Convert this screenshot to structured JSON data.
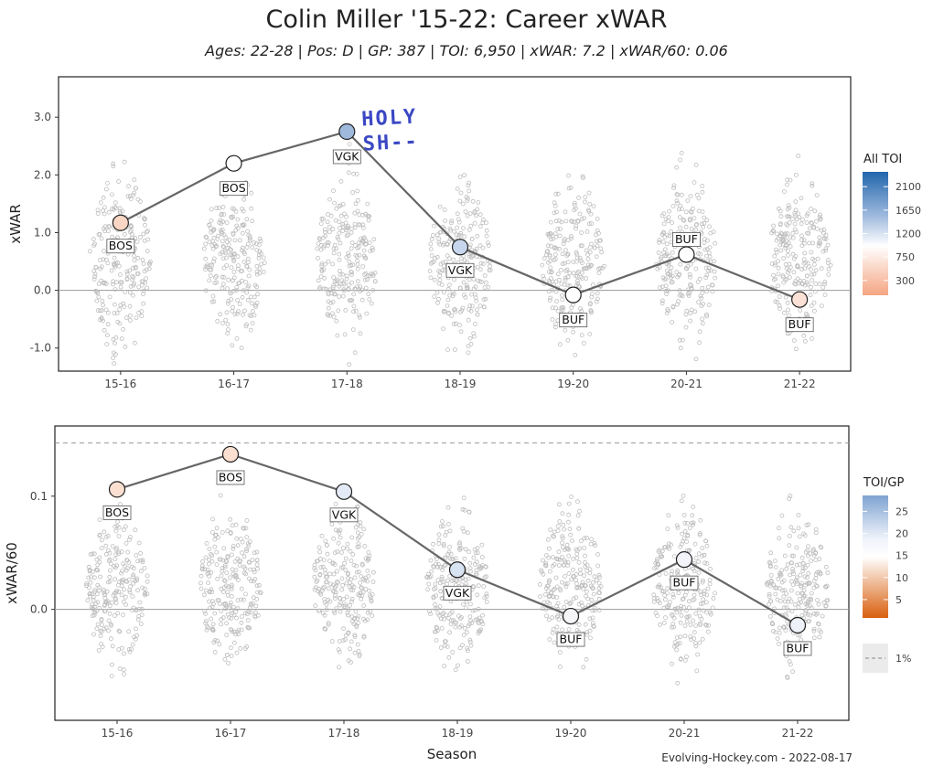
{
  "title": "Colin Miller '15-22: Career xWAR",
  "subtitle": "Ages: 22-28 | Pos: D | GP: 387 | TOI: 6,950 | xWAR: 7.2 | xWAR/60: 0.06",
  "caption": "Evolving-Hockey.com - 2022-08-17",
  "annotation": {
    "line1": "HOLY",
    "line2": "SH--"
  },
  "chart_data": [
    {
      "type": "scatter",
      "ylabel": "xWAR",
      "categories": [
        "15-16",
        "16-17",
        "17-18",
        "18-19",
        "19-20",
        "20-21",
        "21-22"
      ],
      "yticks": [
        -1.0,
        0.0,
        1.0,
        2.0,
        3.0
      ],
      "ylim": [
        -1.4,
        3.7
      ],
      "grid": false,
      "reference_line": 0.0,
      "series": [
        {
          "values": [
            1.17,
            2.2,
            2.75,
            0.75,
            -0.08,
            0.62,
            -0.16
          ],
          "teams": [
            "BOS",
            "BOS",
            "VGK",
            "VGK",
            "BUF",
            "BUF",
            "BUF"
          ],
          "colors": [
            "#f9d6c4",
            "#ffffff",
            "#9fb9dd",
            "#c7d6ec",
            "#ffffff",
            "#ffffff",
            "#fbe1d6"
          ]
        }
      ],
      "legend": {
        "title": "All TOI",
        "ticks": [
          "2100",
          "1650",
          "1200",
          "750",
          "300"
        ],
        "placement": "right"
      }
    },
    {
      "type": "scatter",
      "xlabel": "Season",
      "ylabel": "xWAR/60",
      "categories": [
        "15-16",
        "16-17",
        "17-18",
        "18-19",
        "19-20",
        "20-21",
        "21-22"
      ],
      "yticks": [
        0.0,
        0.1
      ],
      "ylim": [
        -0.098,
        0.162
      ],
      "grid": false,
      "reference_line": 0.0,
      "dashed_line": 0.147,
      "series": [
        {
          "values": [
            0.106,
            0.137,
            0.104,
            0.035,
            -0.006,
            0.044,
            -0.014
          ],
          "teams": [
            "BOS",
            "BOS",
            "VGK",
            "VGK",
            "BUF",
            "BUF",
            "BUF"
          ],
          "colors": [
            "#fbe0d2",
            "#fbe0d2",
            "#e3eaf5",
            "#d8e3f2",
            "#f5f5f7",
            "#f2f4f9",
            "#eef1f8"
          ]
        }
      ],
      "legend": {
        "title": "TOI/GP",
        "ticks": [
          "25",
          "20",
          "15",
          "10",
          "5"
        ],
        "placement": "right",
        "dashed_label": "1%"
      }
    }
  ]
}
